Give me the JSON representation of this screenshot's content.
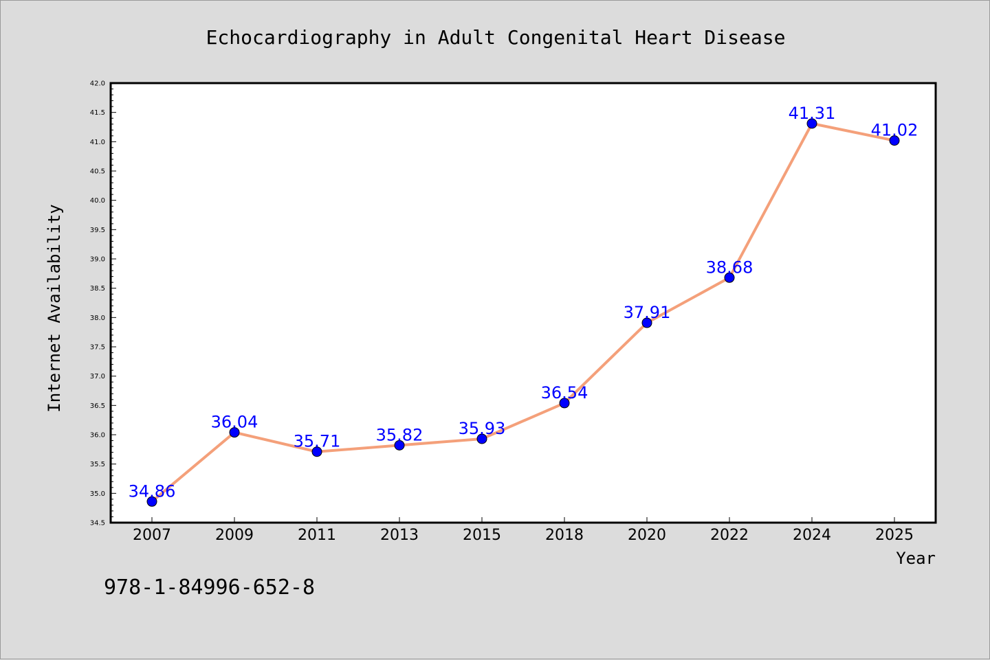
{
  "chart_data": {
    "type": "line",
    "title": "Echocardiography in Adult Congenital Heart Disease",
    "xlabel": "Year",
    "ylabel": "Internet Availability",
    "categories": [
      "2007",
      "2009",
      "2011",
      "2013",
      "2015",
      "2018",
      "2020",
      "2022",
      "2024",
      "2025"
    ],
    "series": [
      {
        "values": [
          34.86,
          36.04,
          35.71,
          35.82,
          35.93,
          36.54,
          37.91,
          38.68,
          41.31,
          41.02
        ],
        "line_color": "#f4a07a",
        "marker_color": "#0000ff"
      }
    ],
    "ylim": [
      34.5,
      42.0
    ],
    "yticks": [
      "34.5",
      "35.0",
      "35.5",
      "36.0",
      "36.5",
      "37.0",
      "37.5",
      "38.0",
      "38.5",
      "39.0",
      "39.5",
      "40.0",
      "40.5",
      "41.0",
      "41.5",
      "42.0"
    ],
    "data_labels": [
      "34.86",
      "36.04",
      "35.71",
      "35.82",
      "35.93",
      "36.54",
      "37.91",
      "38.68",
      "41.31",
      "41.02"
    ],
    "grid": false,
    "legend": "none"
  },
  "footnote": "978-1-84996-652-8",
  "colors": {
    "background": "#dcdcdc",
    "plot_background": "#ffffff",
    "line": "#f4a07a",
    "marker": "#0000ff",
    "data_label": "#0000ff"
  }
}
